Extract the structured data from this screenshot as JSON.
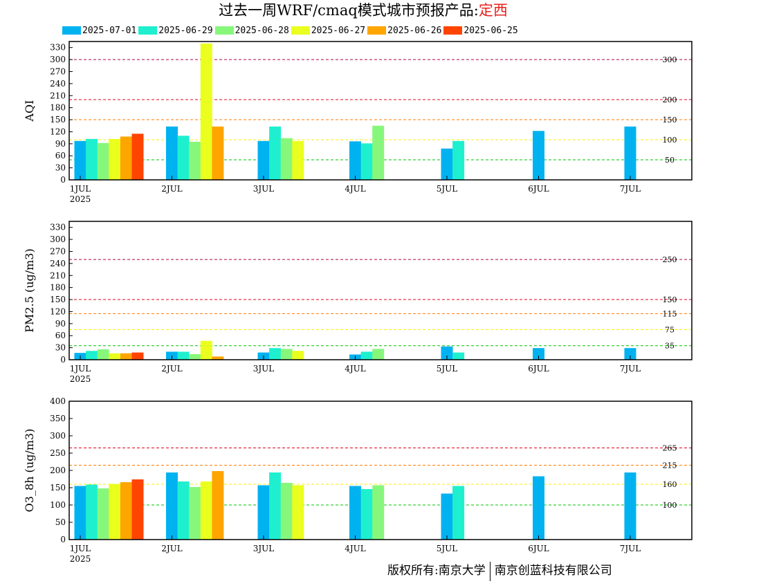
{
  "title": {
    "prefix": "过去一周WRF/cmaq模式城市预报产品:",
    "city": "定西",
    "city_color": "#e8201a"
  },
  "legend": [
    {
      "label": "2025-07-01",
      "color": "#00b2f0"
    },
    {
      "label": "2025-06-29",
      "color": "#1ef0cf"
    },
    {
      "label": "2025-06-28",
      "color": "#87f77c"
    },
    {
      "label": "2025-06-27",
      "color": "#eaff1e"
    },
    {
      "label": "2025-06-26",
      "color": "#ffa500"
    },
    {
      "label": "2025-06-25",
      "color": "#ff4400"
    }
  ],
  "chart_data": [
    {
      "type": "bar",
      "ylabel": "AQI",
      "ylim": [
        0,
        345
      ],
      "yticks": [
        0,
        30,
        60,
        90,
        120,
        150,
        180,
        210,
        240,
        270,
        300,
        330
      ],
      "xlim": [
        0,
        7
      ],
      "xticks": [
        "1JUL",
        "2JUL",
        "3JUL",
        "4JUL",
        "5JUL",
        "6JUL",
        "7JUL"
      ],
      "xyear": "2025",
      "thresholds": [
        {
          "value": 300,
          "label": "300",
          "color": "#b0004a"
        },
        {
          "value": 200,
          "label": "200",
          "color": "#e0001a"
        },
        {
          "value": 150,
          "label": "150",
          "color": "#ff7a00"
        },
        {
          "value": 100,
          "label": "100",
          "color": "#ffee00"
        },
        {
          "value": 50,
          "label": "50",
          "color": "#00c000"
        }
      ],
      "series": [
        {
          "name": "2025-07-01",
          "values": [
            97,
            133,
            97,
            96,
            78,
            122,
            133
          ]
        },
        {
          "name": "2025-06-29",
          "values": [
            102,
            110,
            133,
            91,
            97,
            null,
            null
          ]
        },
        {
          "name": "2025-06-28",
          "values": [
            92,
            95,
            104,
            135,
            null,
            null,
            null
          ]
        },
        {
          "name": "2025-06-27",
          "values": [
            102,
            340,
            97,
            null,
            null,
            null,
            null
          ]
        },
        {
          "name": "2025-06-26",
          "values": [
            108,
            133,
            null,
            null,
            null,
            null,
            null
          ]
        },
        {
          "name": "2025-06-25",
          "values": [
            115,
            null,
            null,
            null,
            null,
            null,
            null
          ]
        }
      ]
    },
    {
      "type": "bar",
      "ylabel": "PM2.5 (ug/m3)",
      "ylim": [
        0,
        345
      ],
      "yticks": [
        0,
        30,
        60,
        90,
        120,
        150,
        180,
        210,
        240,
        270,
        300,
        330
      ],
      "xlim": [
        0,
        7
      ],
      "xticks": [
        "1JUL",
        "2JUL",
        "3JUL",
        "4JUL",
        "5JUL",
        "6JUL",
        "7JUL"
      ],
      "xyear": "2025",
      "thresholds": [
        {
          "value": 250,
          "label": "250",
          "color": "#b0004a"
        },
        {
          "value": 150,
          "label": "150",
          "color": "#e0001a"
        },
        {
          "value": 115,
          "label": "115",
          "color": "#ff7a00"
        },
        {
          "value": 75,
          "label": "75",
          "color": "#ffee00"
        },
        {
          "value": 35,
          "label": "35",
          "color": "#00c000"
        }
      ],
      "series": [
        {
          "name": "2025-07-01",
          "values": [
            17,
            20,
            18,
            13,
            33,
            29,
            29
          ]
        },
        {
          "name": "2025-06-29",
          "values": [
            22,
            20,
            29,
            20,
            18,
            null,
            null
          ]
        },
        {
          "name": "2025-06-28",
          "values": [
            26,
            14,
            27,
            27,
            null,
            null,
            null
          ]
        },
        {
          "name": "2025-06-27",
          "values": [
            16,
            47,
            22,
            null,
            null,
            null,
            null
          ]
        },
        {
          "name": "2025-06-26",
          "values": [
            16,
            8,
            null,
            null,
            null,
            null,
            null
          ]
        },
        {
          "name": "2025-06-25",
          "values": [
            18,
            null,
            null,
            null,
            null,
            null,
            null
          ]
        }
      ]
    },
    {
      "type": "bar",
      "ylabel": "O3_8h (ug/m3)",
      "ylim": [
        0,
        400
      ],
      "yticks": [
        0,
        50,
        100,
        150,
        200,
        250,
        300,
        350,
        400
      ],
      "xlim": [
        0,
        7
      ],
      "xticks": [
        "1JUL",
        "2JUL",
        "3JUL",
        "4JUL",
        "5JUL",
        "6JUL",
        "7JUL"
      ],
      "xyear": "2025",
      "thresholds": [
        {
          "value": 265,
          "label": "265",
          "color": "#e0001a"
        },
        {
          "value": 215,
          "label": "215",
          "color": "#ff7a00"
        },
        {
          "value": 160,
          "label": "160",
          "color": "#ffee00"
        },
        {
          "value": 100,
          "label": "100",
          "color": "#00c000"
        }
      ],
      "series": [
        {
          "name": "2025-07-01",
          "values": [
            155,
            194,
            157,
            155,
            133,
            183,
            194
          ]
        },
        {
          "name": "2025-06-29",
          "values": [
            159,
            168,
            194,
            146,
            155,
            null,
            null
          ]
        },
        {
          "name": "2025-06-28",
          "values": [
            148,
            152,
            164,
            157,
            null,
            null,
            null
          ]
        },
        {
          "name": "2025-06-27",
          "values": [
            161,
            168,
            157,
            null,
            null,
            null,
            null
          ]
        },
        {
          "name": "2025-06-26",
          "values": [
            166,
            198,
            null,
            null,
            null,
            null,
            null
          ]
        },
        {
          "name": "2025-06-25",
          "values": [
            174,
            null,
            null,
            null,
            null,
            null,
            null
          ]
        }
      ]
    }
  ],
  "copyright": {
    "left": "版权所有:南京大学",
    "right": "南京创蓝科技有限公司"
  }
}
